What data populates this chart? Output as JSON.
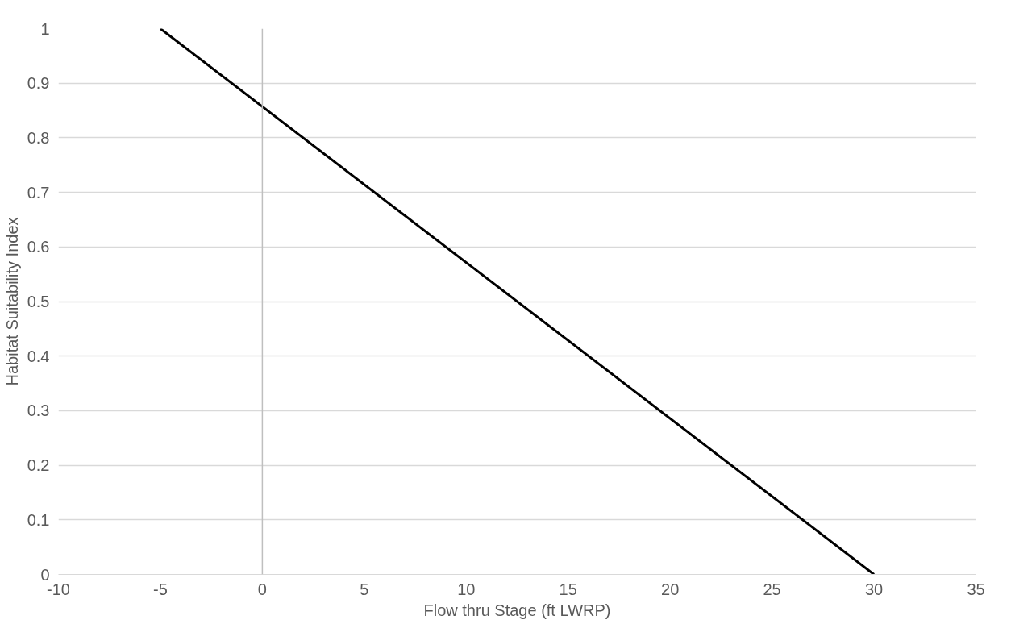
{
  "chart_data": {
    "type": "line",
    "xlabel": "Flow thru Stage (ft LWRP)",
    "ylabel": "Habitat Suitability Index",
    "x": [
      -5,
      30
    ],
    "values": [
      1,
      0
    ],
    "color": "#000000",
    "xlim": [
      -10,
      35
    ],
    "ylim": [
      0,
      1
    ],
    "xticks": [
      -10,
      -5,
      0,
      5,
      10,
      15,
      20,
      25,
      30,
      35
    ],
    "yticks": [
      0,
      0.1,
      0.2,
      0.3,
      0.4,
      0.5,
      0.6,
      0.7,
      0.8,
      0.9,
      1
    ],
    "grid": "y"
  }
}
